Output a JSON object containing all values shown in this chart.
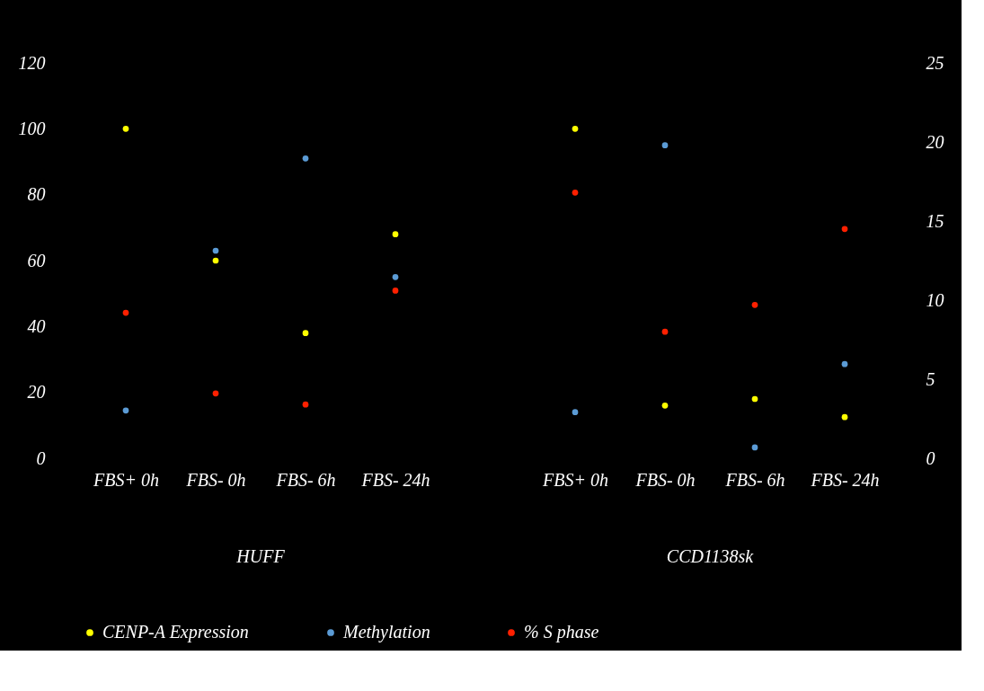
{
  "chart_data": {
    "type": "scatter",
    "categories": [
      "FBS+ 0h",
      "FBS- 0h",
      "FBS- 6h",
      "FBS- 24h",
      null,
      "FBS+ 0h",
      "FBS- 0h",
      "FBS- 6h",
      "FBS- 24h"
    ],
    "series": [
      {
        "name": "CENP-A Expression",
        "color": "#ffff00",
        "values": [
          100,
          60,
          38,
          68,
          null,
          100,
          16,
          18,
          12.5
        ]
      },
      {
        "name": "Methylation",
        "color": "#5b9bd5",
        "values": [
          14.5,
          63,
          91,
          55,
          null,
          14,
          95,
          3.3,
          28.6
        ]
      },
      {
        "name": "% S phase",
        "color": "#ff2000",
        "axis": "y2",
        "values": [
          9.2,
          4.1,
          3.4,
          10.6,
          null,
          16.8,
          8.0,
          9.7,
          14.5
        ]
      }
    ],
    "ylim": [
      0,
      120
    ],
    "yticks": [
      0,
      20,
      40,
      60,
      80,
      100,
      120
    ],
    "y2lim": [
      0,
      25
    ],
    "y2ticks": [
      0,
      5,
      10,
      15,
      20,
      25
    ],
    "annotations": [
      "HUFF",
      "CCD1138sk"
    ],
    "legend": "bottom",
    "marker": "circle"
  }
}
